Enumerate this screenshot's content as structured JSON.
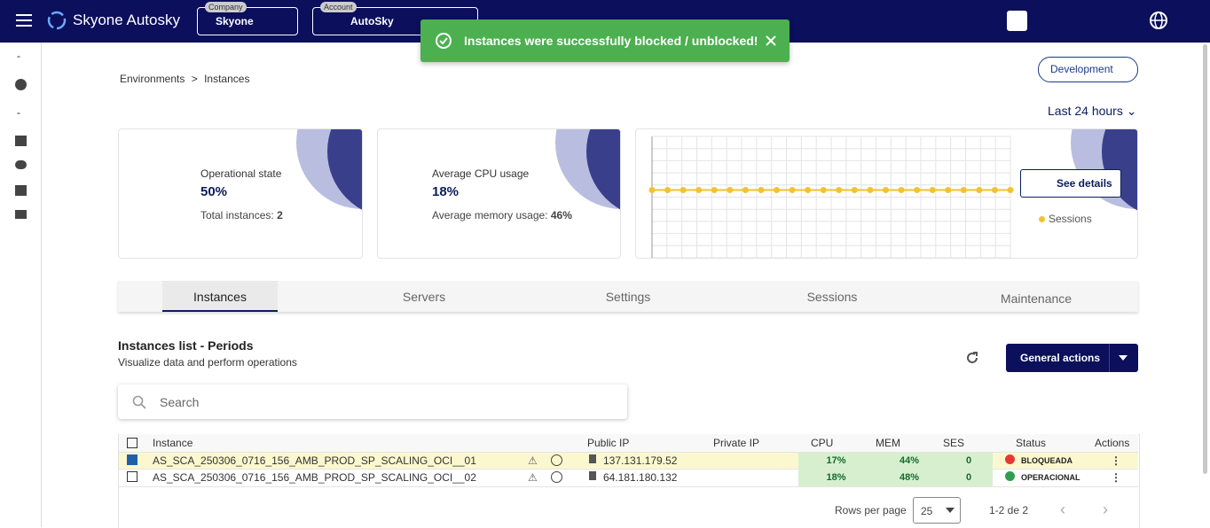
{
  "header": {
    "brand": "Skyone Autosky",
    "company_label": "Company",
    "company": "Skyone",
    "account_label": "Account",
    "account": "AutoSky"
  },
  "toast": {
    "message": "Instances were successfully blocked / unblocked!"
  },
  "sidebar": {
    "dividers": [
      "-",
      "-"
    ]
  },
  "breadcrumb": {
    "items": [
      "Environments",
      "Instances"
    ],
    "separator": ">"
  },
  "environment_button": "Development",
  "period_selector": "Last 24 hours",
  "cards": [
    {
      "title": "Operational state",
      "value": "50%",
      "detail_label": "Total instances:",
      "detail_value": "2"
    },
    {
      "title": "Average CPU usage",
      "value": "18%",
      "detail_label": "Average memory usage:",
      "detail_value": "46%"
    }
  ],
  "sessions_chart": {
    "button": "See details",
    "legend": "Sessions",
    "ylim": [
      -1,
      1
    ],
    "values": [
      0,
      0,
      0,
      0,
      0,
      0,
      0,
      0,
      0,
      0,
      0,
      0,
      0,
      0,
      0,
      0,
      0,
      0,
      0,
      0,
      0,
      0,
      0,
      0
    ]
  },
  "tabs": [
    "Instances",
    "Servers",
    "Settings",
    "Sessions",
    "Maintenance"
  ],
  "list": {
    "title": "Instances list - Periods",
    "subtitle": "Visualize data and perform operations",
    "actions_button": "General actions",
    "search_placeholder": "Search"
  },
  "table": {
    "headers": [
      "Instance",
      "Public IP",
      "Private IP",
      "CPU",
      "MEM",
      "SES",
      "Status",
      "Actions"
    ],
    "rows": [
      {
        "instance": "AS_SCA_250306_0716_156_AMB_PROD_SP_SCALING_OCI__01",
        "public_ip": "137.131.179.52",
        "cpu": "17%",
        "mem": "44%",
        "ses": "0",
        "status": "BLOQUEADA"
      },
      {
        "instance": "AS_SCA_250306_0716_156_AMB_PROD_SP_SCALING_OCI__02",
        "public_ip": "64.181.180.132",
        "cpu": "18%",
        "mem": "48%",
        "ses": "0",
        "status": "OPERACIONAL"
      }
    ]
  },
  "pagination": {
    "rows_label": "Rows per page",
    "rows_value": "25",
    "range": "1-2 de 2"
  }
}
